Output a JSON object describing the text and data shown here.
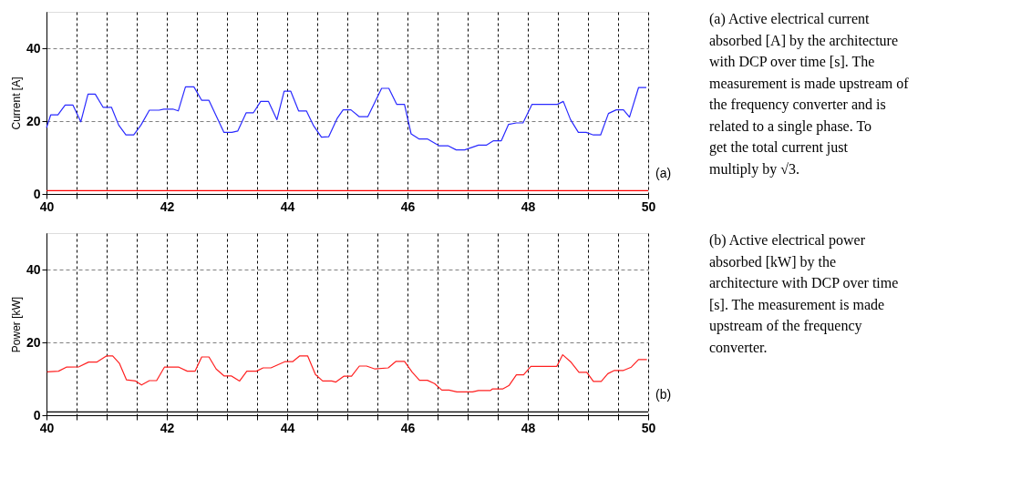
{
  "chart_data": [
    {
      "type": "line",
      "ylabel": "Current [A]",
      "xlim": [
        40,
        50
      ],
      "ylim": [
        0,
        50
      ],
      "xticks": [
        40,
        {
          "value": 40.5,
          "label": null
        },
        {
          "value": 41,
          "label": null
        },
        {
          "value": 41.5,
          "label": null
        },
        42,
        {
          "value": 42.5,
          "label": null
        },
        {
          "value": 43,
          "label": null
        },
        {
          "value": 43.5,
          "label": null
        },
        44,
        {
          "value": 44.5,
          "label": null
        },
        {
          "value": 45,
          "label": null
        },
        {
          "value": 45.5,
          "label": null
        },
        46,
        {
          "value": 46.5,
          "label": null
        },
        {
          "value": 47,
          "label": null
        },
        {
          "value": 47.5,
          "label": null
        },
        48,
        {
          "value": 48.5,
          "label": null
        },
        {
          "value": 49,
          "label": null
        },
        {
          "value": 49.5,
          "label": null
        },
        50
      ],
      "yticks": [
        0,
        20,
        40
      ],
      "grid": true,
      "annotations": [
        "(a)",
        "(a) Active electrical current absorbed [A] by the architecture with DCP over time [s]. The measurement is made upstream of the frequency converter and is related to a single phase. To get the total current just multiply by √3."
      ],
      "series": [
        {
          "color": "#2a2aff",
          "x": [
            40,
            40.07,
            40.19,
            40.31,
            40.44,
            40.57,
            40.69,
            40.81,
            40.94,
            41.08,
            41.2,
            41.32,
            41.45,
            41.57,
            41.71,
            41.87,
            41.95,
            42.1,
            42.19,
            42.31,
            42.45,
            42.58,
            42.7,
            42.95,
            43.08,
            43.18,
            43.32,
            43.44,
            43.56,
            43.69,
            43.83,
            43.95,
            44.06,
            44.19,
            44.32,
            44.44,
            44.57,
            44.69,
            44.83,
            44.93,
            45.06,
            45.2,
            45.34,
            45.57,
            45.69,
            45.82,
            45.95,
            46.06,
            46.19,
            46.33,
            46.53,
            46.68,
            46.81,
            46.95,
            47.18,
            47.31,
            47.43,
            47.56,
            47.68,
            47.81,
            47.92,
            48.07,
            48.49,
            48.59,
            48.71,
            48.84,
            48.97,
            49.09,
            49.21,
            49.34,
            49.47,
            49.59,
            49.69,
            49.84,
            49.97
          ],
          "values": [
            18.2,
            21.7,
            21.7,
            24.4,
            24.4,
            19.8,
            27.4,
            27.4,
            23.8,
            23.8,
            18.9,
            16.2,
            16.2,
            18.9,
            23.0,
            23.0,
            23.3,
            23.3,
            22.8,
            29.4,
            29.4,
            25.7,
            25.7,
            16.9,
            16.9,
            17.3,
            22.3,
            22.3,
            25.4,
            25.4,
            20.4,
            28.2,
            28.2,
            22.8,
            22.8,
            18.7,
            15.6,
            15.7,
            20.7,
            23.1,
            23.1,
            21.2,
            21.2,
            29.0,
            29.0,
            24.6,
            24.6,
            16.5,
            15.1,
            15.1,
            13.2,
            13.2,
            12.1,
            12.1,
            13.4,
            13.4,
            14.6,
            14.6,
            19.1,
            19.5,
            19.5,
            24.6,
            24.6,
            25.4,
            20.4,
            16.9,
            16.9,
            16.2,
            16.2,
            22.1,
            23.1,
            23.1,
            21.1,
            29.2,
            29.2
          ]
        },
        {
          "color": "#ff0000",
          "x": [
            40,
            50
          ],
          "values": [
            0.9,
            0.9
          ]
        }
      ]
    },
    {
      "type": "line",
      "ylabel": "Power [kW]",
      "xlim": [
        40,
        50
      ],
      "ylim": [
        0,
        50
      ],
      "xticks": [
        40,
        {
          "value": 40.5,
          "label": null
        },
        {
          "value": 41,
          "label": null
        },
        {
          "value": 41.5,
          "label": null
        },
        42,
        {
          "value": 42.5,
          "label": null
        },
        {
          "value": 43,
          "label": null
        },
        {
          "value": 43.5,
          "label": null
        },
        44,
        {
          "value": 44.5,
          "label": null
        },
        {
          "value": 45,
          "label": null
        },
        {
          "value": 45.5,
          "label": null
        },
        46,
        {
          "value": 46.5,
          "label": null
        },
        {
          "value": 47,
          "label": null
        },
        {
          "value": 47.5,
          "label": null
        },
        48,
        {
          "value": 48.5,
          "label": null
        },
        {
          "value": 49,
          "label": null
        },
        {
          "value": 49.5,
          "label": null
        },
        50
      ],
      "yticks": [
        0,
        20,
        40
      ],
      "grid": true,
      "annotations": [
        "(b)",
        "(b) Active electrical power absorbed [kW] by the architecture with DCP over time [s]. The measurement is made upstream of the frequency converter."
      ],
      "series": [
        {
          "color": "#ff2020",
          "x": [
            40.01,
            40.2,
            40.33,
            40.54,
            40.7,
            40.84,
            41.0,
            41.1,
            41.21,
            41.33,
            41.48,
            41.58,
            41.71,
            41.83,
            41.96,
            42.2,
            42.34,
            42.47,
            42.58,
            42.7,
            42.82,
            42.95,
            43.07,
            43.21,
            43.33,
            43.49,
            43.6,
            43.73,
            43.96,
            44.09,
            44.21,
            44.34,
            44.47,
            44.59,
            44.74,
            44.81,
            44.94,
            45.07,
            45.2,
            45.32,
            45.46,
            45.68,
            45.81,
            45.95,
            46.08,
            46.2,
            46.33,
            46.45,
            46.57,
            46.69,
            46.82,
            47.08,
            47.18,
            47.38,
            47.41,
            47.58,
            47.69,
            47.81,
            47.93,
            48.05,
            48.48,
            48.58,
            48.71,
            48.85,
            48.98,
            49.09,
            49.22,
            49.33,
            49.44,
            49.59,
            49.72,
            49.84,
            49.98
          ],
          "values": [
            11.9,
            12.1,
            13.2,
            13.3,
            14.6,
            14.6,
            16.3,
            16.3,
            14.3,
            9.7,
            9.4,
            8.3,
            9.5,
            9.5,
            13.2,
            13.2,
            12.1,
            12.1,
            16.0,
            16.0,
            12.7,
            10.8,
            10.8,
            9.4,
            12.1,
            12.1,
            13.0,
            13.0,
            14.7,
            14.7,
            16.3,
            16.3,
            11.2,
            9.4,
            9.4,
            9.1,
            10.7,
            10.7,
            13.5,
            13.5,
            12.7,
            13.0,
            14.8,
            14.8,
            11.8,
            9.6,
            9.6,
            8.7,
            6.9,
            6.9,
            6.4,
            6.4,
            6.8,
            6.8,
            7.2,
            7.2,
            8.2,
            11.1,
            11.1,
            13.4,
            13.4,
            16.6,
            14.7,
            11.8,
            11.8,
            9.3,
            9.3,
            11.4,
            12.3,
            12.3,
            13.2,
            15.3,
            15.3
          ]
        },
        {
          "color": "#000000",
          "x": [
            40,
            50
          ],
          "values": [
            0.9,
            0.9
          ]
        }
      ]
    }
  ]
}
